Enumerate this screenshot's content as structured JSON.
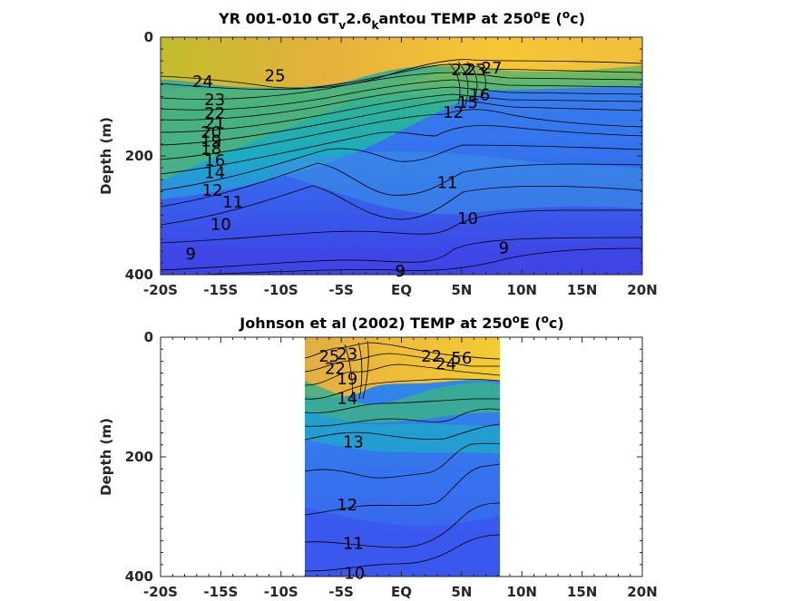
{
  "chart_data": [
    {
      "type": "heatmap",
      "title_parts": [
        "YR 001-010 GT",
        "v",
        "2.6",
        "k",
        "antou TEMP at 250",
        "o",
        "E (",
        "o",
        "c)"
      ],
      "title": "YR 001-010 GT_v2.6_kantou TEMP at 250^oE (^oc)",
      "ylabel": "Depth (m)",
      "x_ticks": [
        "-20S",
        "-15S",
        "-10S",
        "-5S",
        "EQ",
        "5N",
        "10N",
        "15N",
        "20N"
      ],
      "y_ticks": [
        "0",
        "200",
        "400"
      ],
      "xlim": [
        -20,
        20
      ],
      "ylim": [
        0,
        400
      ],
      "y_reversed": true,
      "data_extent": [
        -20,
        20
      ],
      "contour_labels": [
        {
          "text": "25",
          "x": -10.5,
          "y": 65
        },
        {
          "text": "24",
          "x": -16.5,
          "y": 75
        },
        {
          "text": "23",
          "x": -15.5,
          "y": 105
        },
        {
          "text": "22",
          "x": -15.5,
          "y": 128
        },
        {
          "text": "21",
          "x": -15.5,
          "y": 145
        },
        {
          "text": "20",
          "x": -15.8,
          "y": 160
        },
        {
          "text": "19",
          "x": -15.8,
          "y": 175
        },
        {
          "text": "18",
          "x": -15.8,
          "y": 188
        },
        {
          "text": "16",
          "x": -15.5,
          "y": 208
        },
        {
          "text": "14",
          "x": -15.5,
          "y": 228
        },
        {
          "text": "12",
          "x": -15.7,
          "y": 258
        },
        {
          "text": "11",
          "x": -14,
          "y": 278
        },
        {
          "text": "10",
          "x": -15,
          "y": 315
        },
        {
          "text": "9",
          "x": -17.5,
          "y": 365
        },
        {
          "text": "9",
          "x": -0.1,
          "y": 394
        },
        {
          "text": "9",
          "x": 8.5,
          "y": 355
        },
        {
          "text": "10",
          "x": 5.5,
          "y": 305
        },
        {
          "text": "11",
          "x": 3.8,
          "y": 245
        },
        {
          "text": "12",
          "x": 4.3,
          "y": 127
        },
        {
          "text": "15",
          "x": 5.5,
          "y": 110
        },
        {
          "text": "16",
          "x": 6.5,
          "y": 97
        },
        {
          "text": "22",
          "x": 5,
          "y": 55
        },
        {
          "text": "23",
          "x": 6.2,
          "y": 55
        },
        {
          "text": "27",
          "x": 7.5,
          "y": 52
        }
      ]
    },
    {
      "type": "heatmap",
      "title_parts": [
        "Johnson et al (2002) TEMP at 250",
        "o",
        "E (",
        "o",
        "c)"
      ],
      "title": "Johnson et al (2002) TEMP at 250^oE (^oc)",
      "ylabel": "Depth (m)",
      "x_ticks": [
        "-20S",
        "-15S",
        "-10S",
        "-5S",
        "EQ",
        "5N",
        "10N",
        "15N",
        "20N"
      ],
      "y_ticks": [
        "0",
        "200",
        "400"
      ],
      "xlim": [
        -20,
        20
      ],
      "ylim": [
        0,
        400
      ],
      "y_reversed": true,
      "data_extent": [
        -8,
        8.2
      ],
      "contour_labels": [
        {
          "text": "25",
          "x": -6,
          "y": 32
        },
        {
          "text": "23",
          "x": -4.5,
          "y": 28
        },
        {
          "text": "22",
          "x": -5.5,
          "y": 52
        },
        {
          "text": "19",
          "x": -4.5,
          "y": 70
        },
        {
          "text": "14",
          "x": -4.5,
          "y": 102
        },
        {
          "text": "13",
          "x": -4,
          "y": 175
        },
        {
          "text": "12",
          "x": -4.5,
          "y": 280
        },
        {
          "text": "11",
          "x": -4,
          "y": 345
        },
        {
          "text": "10",
          "x": -3.9,
          "y": 395
        },
        {
          "text": "22",
          "x": 2.5,
          "y": 32
        },
        {
          "text": "24",
          "x": 3.7,
          "y": 45
        },
        {
          "text": "56",
          "x": 5,
          "y": 35
        }
      ]
    }
  ]
}
